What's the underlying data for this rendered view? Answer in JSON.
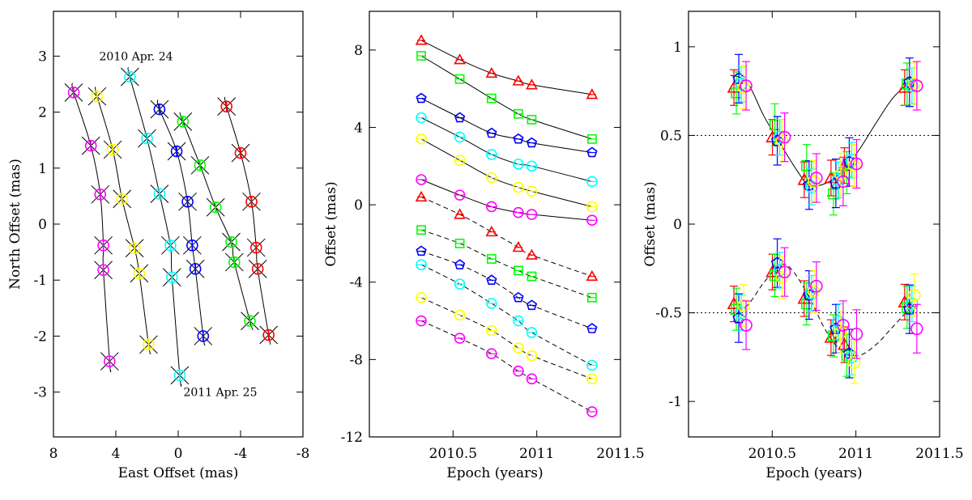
{
  "chart_data": [
    {
      "type": "scatter",
      "xlabel": "East Offset (mas)",
      "ylabel": "North Offset (mas)",
      "xlim": [
        8,
        -8
      ],
      "ylim": [
        -3.8,
        3.8
      ],
      "xticks": [
        8,
        4,
        0,
        -4,
        -8
      ],
      "yticks": [
        -3,
        -2,
        -1,
        0,
        1,
        2,
        3
      ],
      "annotations": [
        {
          "text": "2010 Apr. 24",
          "x": 2.7,
          "y": 3.0
        },
        {
          "text": "2011 Apr. 25",
          "x": -2.7,
          "y": -3.0
        }
      ],
      "series": [
        {
          "color": "#ff00ff",
          "points": [
            [
              6.7,
              2.35
            ],
            [
              5.6,
              1.4
            ],
            [
              5.0,
              0.53
            ],
            [
              4.8,
              -0.38
            ],
            [
              4.8,
              -0.82
            ],
            [
              4.4,
              -2.45
            ]
          ]
        },
        {
          "color": "#ffff00",
          "points": [
            [
              5.2,
              2.28
            ],
            [
              4.2,
              1.33
            ],
            [
              3.6,
              0.45
            ],
            [
              2.8,
              -0.43
            ],
            [
              2.5,
              -0.88
            ],
            [
              1.9,
              -2.15
            ]
          ]
        },
        {
          "color": "#00ffff",
          "points": [
            [
              3.1,
              2.63
            ],
            [
              2.0,
              1.53
            ],
            [
              1.2,
              0.54
            ],
            [
              0.5,
              -0.38
            ],
            [
              0.4,
              -0.95
            ],
            [
              -0.1,
              -2.7
            ]
          ]
        },
        {
          "color": "#0000ff",
          "points": [
            [
              1.2,
              2.05
            ],
            [
              0.1,
              1.3
            ],
            [
              -0.6,
              0.4
            ],
            [
              -0.9,
              -0.38
            ],
            [
              -1.1,
              -0.8
            ],
            [
              -1.6,
              -2.0
            ]
          ]
        },
        {
          "color": "#00ff00",
          "points": [
            [
              -0.3,
              1.83
            ],
            [
              -1.4,
              1.05
            ],
            [
              -2.4,
              0.3
            ],
            [
              -3.4,
              -0.32
            ],
            [
              -3.6,
              -0.68
            ],
            [
              -4.6,
              -1.73
            ]
          ]
        },
        {
          "color": "#ff0000",
          "points": [
            [
              -3.1,
              2.1
            ],
            [
              -4.0,
              1.27
            ],
            [
              -4.7,
              0.4
            ],
            [
              -5.0,
              -0.42
            ],
            [
              -5.1,
              -0.8
            ],
            [
              -5.8,
              -1.98
            ]
          ]
        }
      ]
    },
    {
      "type": "line",
      "xlabel": "Epoch (years)",
      "ylabel": "Offset (mas)",
      "xlim": [
        2010.0,
        2011.5
      ],
      "ylim": [
        -12,
        10
      ],
      "xticks": [
        2010.5,
        2011,
        2011.5
      ],
      "yticks": [
        -12,
        -8,
        -4,
        0,
        4,
        8
      ],
      "epochs": [
        2010.31,
        2010.54,
        2010.73,
        2010.89,
        2010.97,
        2011.33
      ],
      "series": [
        {
          "color": "#ff0000",
          "marker": "triangle",
          "style": "solid",
          "values": [
            8.5,
            7.5,
            6.8,
            6.4,
            6.2,
            5.7
          ]
        },
        {
          "color": "#00ff00",
          "marker": "square",
          "style": "solid",
          "values": [
            7.7,
            6.5,
            5.5,
            4.7,
            4.4,
            3.4
          ]
        },
        {
          "color": "#0000ff",
          "marker": "pentagon",
          "style": "solid",
          "values": [
            5.5,
            4.5,
            3.7,
            3.4,
            3.2,
            2.7
          ]
        },
        {
          "color": "#00ffff",
          "marker": "circle",
          "style": "solid",
          "values": [
            4.5,
            3.5,
            2.6,
            2.1,
            2.0,
            1.2
          ]
        },
        {
          "color": "#ffff00",
          "marker": "circle",
          "style": "solid",
          "values": [
            3.4,
            2.3,
            1.4,
            0.9,
            0.7,
            -0.1
          ]
        },
        {
          "color": "#ff00ff",
          "marker": "circle",
          "style": "solid",
          "values": [
            1.3,
            0.5,
            -0.1,
            -0.4,
            -0.5,
            -0.8
          ]
        },
        {
          "color": "#ff0000",
          "marker": "triangle",
          "style": "dashed",
          "values": [
            0.4,
            -0.5,
            -1.4,
            -2.2,
            -2.6,
            -3.7
          ]
        },
        {
          "color": "#00ff00",
          "marker": "square",
          "style": "dashed",
          "values": [
            -1.3,
            -2.0,
            -2.8,
            -3.4,
            -3.7,
            -4.8
          ]
        },
        {
          "color": "#0000ff",
          "marker": "pentagon",
          "style": "dashed",
          "values": [
            -2.4,
            -3.1,
            -3.9,
            -4.8,
            -5.2,
            -6.4
          ]
        },
        {
          "color": "#00ffff",
          "marker": "circle",
          "style": "dashed",
          "values": [
            -3.1,
            -4.1,
            -5.1,
            -6.0,
            -6.6,
            -8.3
          ]
        },
        {
          "color": "#ffff00",
          "marker": "circle",
          "style": "dashed",
          "values": [
            -4.8,
            -5.7,
            -6.5,
            -7.4,
            -7.8,
            -9.0
          ]
        },
        {
          "color": "#ff00ff",
          "marker": "circle",
          "style": "dashed",
          "values": [
            -6.0,
            -6.9,
            -7.7,
            -8.6,
            -9.0,
            -10.7
          ]
        }
      ]
    },
    {
      "type": "scatter",
      "xlabel": "Epoch (years)",
      "ylabel": "Offset (mas)",
      "xlim": [
        2010.0,
        2011.5
      ],
      "ylim": [
        -1.2,
        1.2
      ],
      "xticks": [
        2010.5,
        2011,
        2011.5
      ],
      "yticks": [
        -1,
        -0.5,
        0,
        0.5,
        1
      ],
      "reference_lines": [
        0.5,
        -0.5
      ],
      "epochs": [
        2010.31,
        2010.54,
        2010.73,
        2010.89,
        2010.97,
        2011.33
      ],
      "series": [
        {
          "name": "",
          "color": "#ff0000",
          "marker": "triangle",
          "east": [
            0.77,
            0.49,
            0.25,
            0.26,
            0.33,
            0.77
          ],
          "north": [
            -0.45,
            -0.27,
            -0.42,
            -0.64,
            -0.68,
            -0.44
          ]
        },
        {
          "name": "",
          "color": "#00ff00",
          "marker": "square",
          "east": [
            0.74,
            0.56,
            0.33,
            0.17,
            0.29,
            0.79
          ],
          "north": [
            -0.48,
            -0.29,
            -0.45,
            -0.63,
            -0.74,
            -0.47
          ]
        },
        {
          "name": "",
          "color": "#0000ff",
          "marker": "pentagon",
          "east": [
            0.82,
            0.47,
            0.22,
            0.23,
            0.35,
            0.8
          ],
          "north": [
            -0.53,
            -0.22,
            -0.4,
            -0.59,
            -0.73,
            -0.48
          ]
        },
        {
          "name": "",
          "color": "#00ffff",
          "marker": "circle",
          "east": [
            0.79,
            0.49,
            0.21,
            0.25,
            0.36,
            0.78
          ],
          "north": [
            -0.5,
            -0.26,
            -0.39,
            -0.55,
            -0.75,
            -0.45
          ]
        },
        {
          "name": "",
          "color": "#ffff00",
          "marker": "circle",
          "east": [
            0.77,
            0.47,
            0.24,
            0.28,
            0.33,
            0.79
          ],
          "north": [
            -0.46,
            -0.3,
            -0.38,
            -0.61,
            -0.78,
            -0.4
          ]
        },
        {
          "name": "",
          "color": "#ff00ff",
          "marker": "circle",
          "east": [
            0.78,
            0.49,
            0.26,
            0.24,
            0.34,
            0.78
          ],
          "north": [
            -0.57,
            -0.27,
            -0.35,
            -0.57,
            -0.62,
            -0.59
          ]
        }
      ],
      "model": {
        "east": [
          [
            2010.25,
            0.84
          ],
          [
            2010.35,
            0.8
          ],
          [
            2010.45,
            0.61
          ],
          [
            2010.55,
            0.45
          ],
          [
            2010.65,
            0.3
          ],
          [
            2010.72,
            0.22
          ],
          [
            2010.82,
            0.23
          ],
          [
            2010.92,
            0.3
          ],
          [
            2011.02,
            0.42
          ],
          [
            2011.12,
            0.57
          ],
          [
            2011.22,
            0.71
          ],
          [
            2011.32,
            0.8
          ],
          [
            2011.36,
            0.82
          ]
        ],
        "north": [
          [
            2010.25,
            -0.51
          ],
          [
            2010.35,
            -0.46
          ],
          [
            2010.45,
            -0.33
          ],
          [
            2010.55,
            -0.23
          ],
          [
            2010.62,
            -0.26
          ],
          [
            2010.72,
            -0.41
          ],
          [
            2010.82,
            -0.6
          ],
          [
            2010.92,
            -0.72
          ],
          [
            2011.02,
            -0.74
          ],
          [
            2011.12,
            -0.68
          ],
          [
            2011.22,
            -0.58
          ],
          [
            2011.32,
            -0.48
          ],
          [
            2011.36,
            -0.46
          ]
        ]
      }
    }
  ]
}
